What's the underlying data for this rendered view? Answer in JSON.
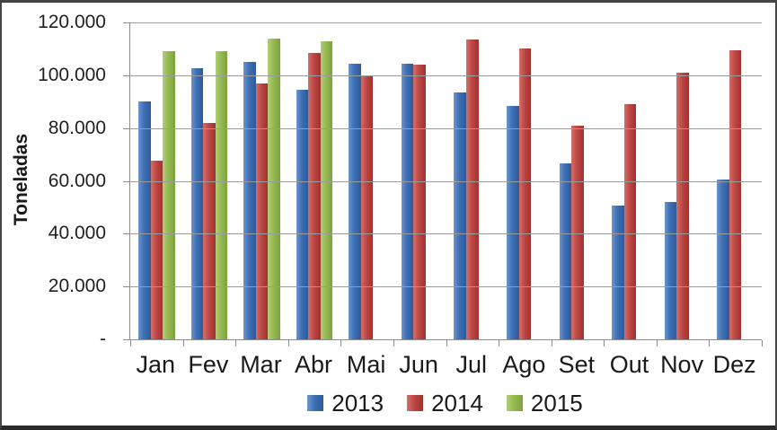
{
  "chart_data": {
    "type": "bar",
    "title": "",
    "xlabel": "",
    "ylabel": "Toneladas",
    "ylim": [
      0,
      120000
    ],
    "ytick_step": 20000,
    "ytick_labels": [
      "120.000",
      "100.000",
      "80.000",
      "60.000",
      "40.000",
      "20.000",
      "-"
    ],
    "grid": true,
    "legend_position": "bottom-center",
    "categories": [
      "Jan",
      "Fev",
      "Mar",
      "Abr",
      "Mai",
      "Jun",
      "Jul",
      "Ago",
      "Set",
      "Out",
      "Nov",
      "Dez"
    ],
    "series": [
      {
        "name": "2013",
        "color": "#3E6FB4",
        "color_light": "#6B95CE",
        "color_dark": "#2F5A99",
        "values": [
          90000,
          102500,
          105000,
          94500,
          104500,
          104500,
          93500,
          88500,
          66500,
          50500,
          52000,
          60500
        ]
      },
      {
        "name": "2014",
        "color": "#BE4745",
        "color_light": "#D2706B",
        "color_dark": "#9E332F",
        "values": [
          67500,
          82000,
          97000,
          108500,
          100000,
          104000,
          113500,
          110000,
          81000,
          89000,
          101000,
          109500
        ]
      },
      {
        "name": "2015",
        "color": "#95B953",
        "color_light": "#B2CE78",
        "color_dark": "#7DA23C",
        "values": [
          109000,
          109000,
          114000,
          113000,
          null,
          null,
          null,
          null,
          null,
          null,
          null,
          null
        ]
      }
    ]
  }
}
